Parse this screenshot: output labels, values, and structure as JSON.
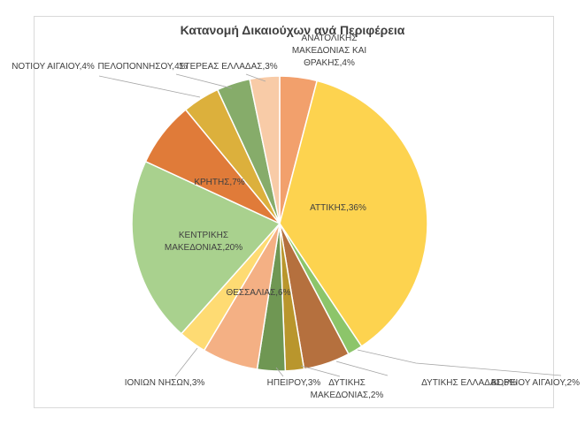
{
  "chart_data": {
    "type": "pie",
    "title": "Κατανομή Δικαιούχων ανά Περιφέρεια",
    "slices": [
      {
        "name": "ΑΝΑΤΟΛΙΚΗΣ ΜΑΚΕΔΟΝΙΑΣ ΚΑΙ ΘΡΑΚΗΣ",
        "label": [
          "ΑΝΑΤΟΛΙΚΗΣ",
          "ΜΑΚΕΔΟΝΙΑΣ ΚΑΙ",
          "ΘΡΑΚΗΣ,4%"
        ],
        "value": 4,
        "color": "#f2a06c"
      },
      {
        "name": "ΑΤΤΙΚΗΣ",
        "label": [
          "ΑΤΤΙΚΗΣ,36%"
        ],
        "value": 36,
        "color": "#fdd34f"
      },
      {
        "name": "ΒΟΡΕΙΟΥ ΑΙΓΑΙΟΥ",
        "label": [
          "ΒΟΡΕΙΟΥ ΑΙΓΑΙΟΥ,2%"
        ],
        "value": 1.6,
        "color": "#8cc56a"
      },
      {
        "name": "ΔΥΤΙΚΗΣ ΕΛΛΑΔΑΣ",
        "label": [
          "ΔΥΤΙΚΗΣ ΕΛΛΑΔΑΣ,5%"
        ],
        "value": 5,
        "color": "#b5703e"
      },
      {
        "name": "ΔΥΤΙΚΗΣ ΜΑΚΕΔΟΝΙΑΣ",
        "label": [
          "ΔΥΤΙΚΗΣ",
          "ΜΑΚΕΔΟΝΙΑΣ,2%"
        ],
        "value": 2,
        "color": "#b9962d"
      },
      {
        "name": "ΗΠΕΙΡΟΥ",
        "label": [
          "ΗΠΕΙΡΟΥ,3%"
        ],
        "value": 3,
        "color": "#6f9753"
      },
      {
        "name": "ΘΕΣΣΑΛΙΑΣ",
        "label": [
          "ΘΕΣΣΑΛΙΑΣ,6%"
        ],
        "value": 6,
        "color": "#f4b084"
      },
      {
        "name": "ΙΟΝΙΩΝ ΝΗΣΩΝ",
        "label": [
          "ΙΟΝΙΩΝ ΝΗΣΩΝ,3%"
        ],
        "value": 3,
        "color": "#fedb73"
      },
      {
        "name": "ΚΕΝΤΡΙΚΗΣ ΜΑΚΕΔΟΝΙΑΣ",
        "label": [
          "ΚΕΝΤΡΙΚΗΣ",
          "ΜΑΚΕΔΟΝΙΑΣ,20%"
        ],
        "value": 20,
        "color": "#a9d18e"
      },
      {
        "name": "ΚΡΗΤΗΣ",
        "label": [
          "ΚΡΗΤΗΣ,7%"
        ],
        "value": 7,
        "color": "#e07b39"
      },
      {
        "name": "ΝΟΤΙΟΥ ΑΙΓΑΙΟΥ",
        "label": [
          "ΝΟΤΙΟΥ ΑΙΓΑΙΟΥ,4%"
        ],
        "value": 4,
        "color": "#dcb03c"
      },
      {
        "name": "ΠΕΛΟΠΟΝΝΗΣΟΥ",
        "label": [
          "ΠΕΛΟΠΟΝΝΗΣΟΥ,4%"
        ],
        "value": 3.6,
        "color": "#86ac6a"
      },
      {
        "name": "ΣΤΕΡΕΑΣ ΕΛΛΑΔΑΣ",
        "label": [
          "ΣΤΕΡΕΑΣ ΕΛΛΑΔΑΣ,3%"
        ],
        "value": 3.2,
        "color": "#f8cba7"
      }
    ],
    "legend": "none"
  }
}
